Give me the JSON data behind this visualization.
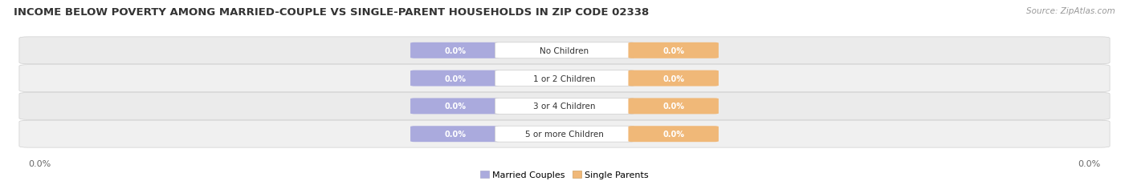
{
  "title": "INCOME BELOW POVERTY AMONG MARRIED-COUPLE VS SINGLE-PARENT HOUSEHOLDS IN ZIP CODE 02338",
  "source": "Source: ZipAtlas.com",
  "categories": [
    "No Children",
    "1 or 2 Children",
    "3 or 4 Children",
    "5 or more Children"
  ],
  "married_values": [
    0.0,
    0.0,
    0.0,
    0.0
  ],
  "single_values": [
    0.0,
    0.0,
    0.0,
    0.0
  ],
  "married_color": "#aaaadd",
  "single_color": "#f0b878",
  "married_label": "Married Couples",
  "single_label": "Single Parents",
  "row_bg_even": "#ebebeb",
  "row_bg_odd": "#f0f0f0",
  "row_edge_color": "#d0d0d0",
  "bar_value_color": "#ffffff",
  "axis_label_left": "0.0%",
  "axis_label_right": "0.0%",
  "title_fontsize": 9.5,
  "source_fontsize": 7.5,
  "legend_fontsize": 8,
  "category_fontsize": 7.5,
  "value_fontsize": 7,
  "axis_fontsize": 8,
  "background_color": "#ffffff",
  "title_color": "#333333",
  "source_color": "#999999",
  "category_color": "#333333",
  "axis_color": "#666666"
}
